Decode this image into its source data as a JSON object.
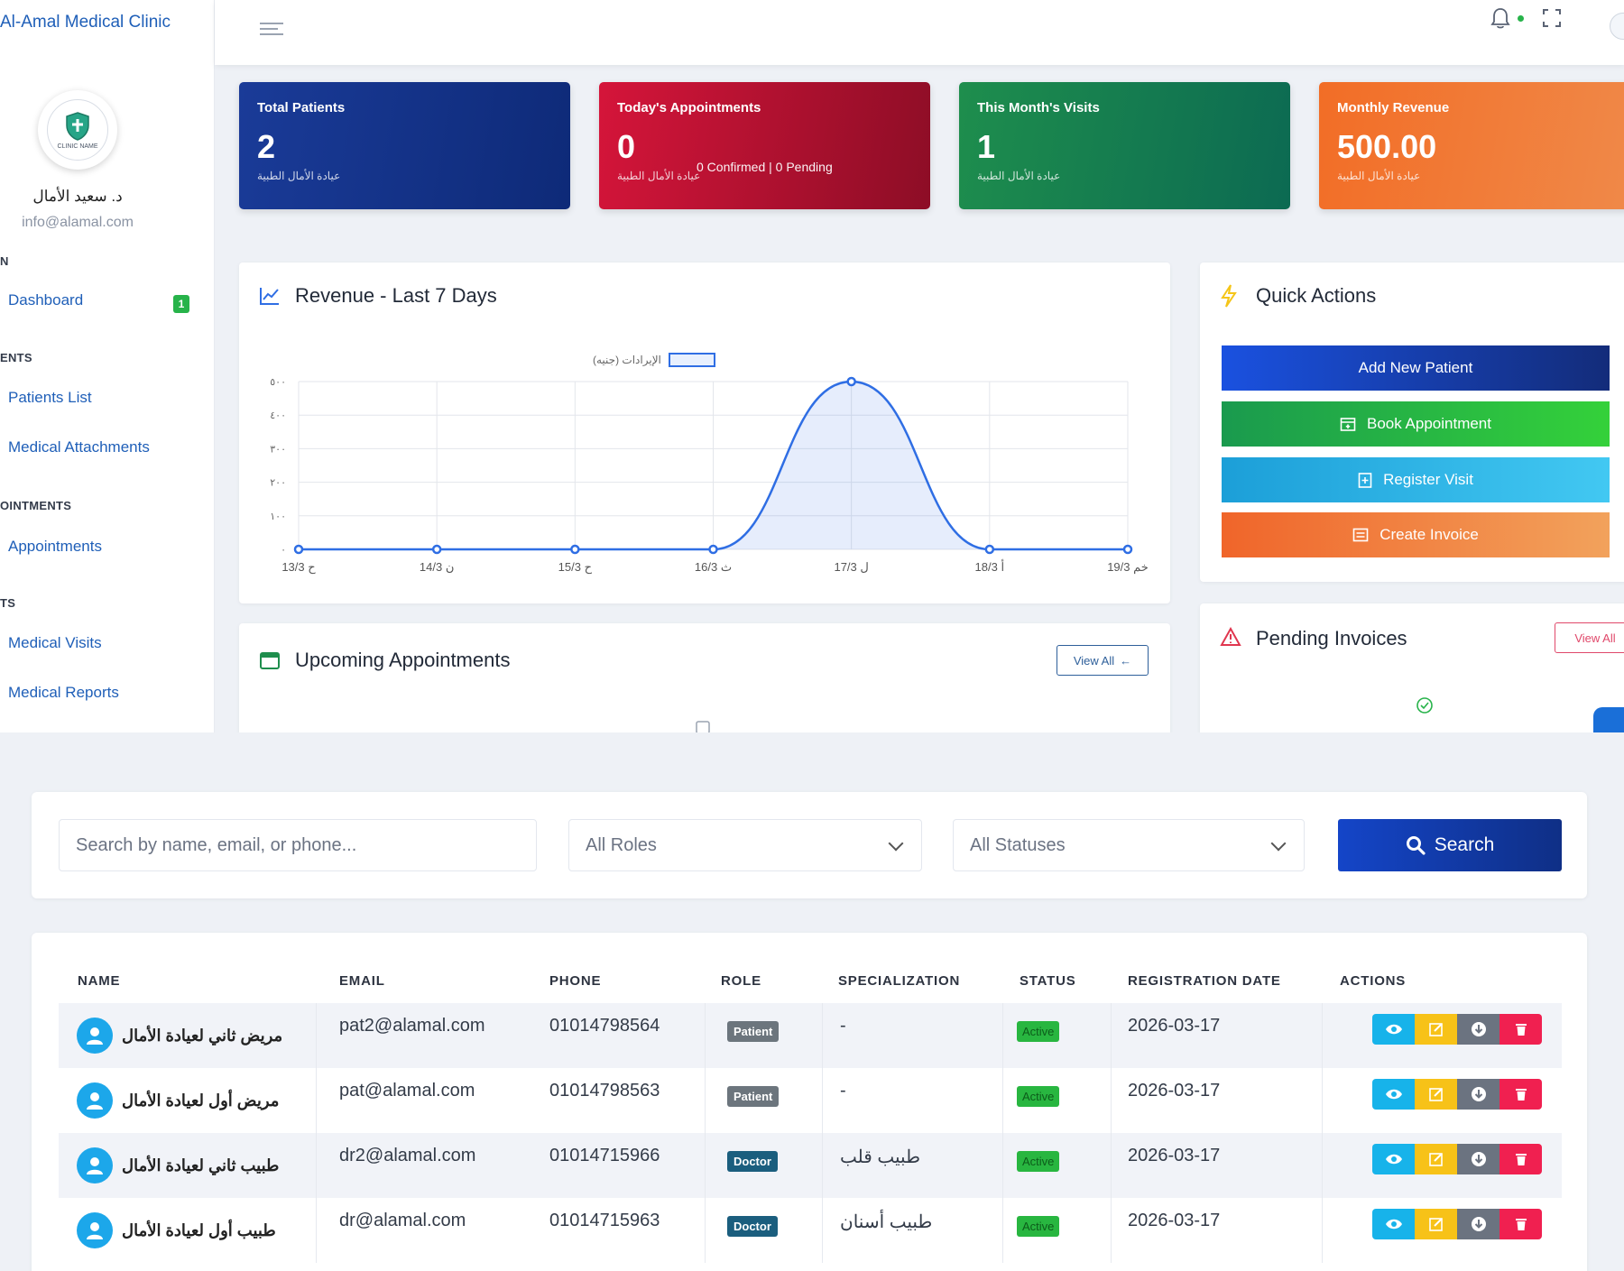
{
  "brand": "Al-Amal Medical Clinic",
  "logo_text": "CLINIC NAME",
  "user": {
    "name": "د. سعيد الأمال",
    "email": "info@alamal.com"
  },
  "sidebar": {
    "sections": [
      "N",
      "ENTS",
      "OINTMENTS",
      "TS"
    ],
    "items": [
      {
        "label": "Dashboard",
        "badge": "1"
      },
      {
        "label": "Patients List"
      },
      {
        "label": "Medical Attachments"
      },
      {
        "label": "Appointments"
      },
      {
        "label": "Medical Visits"
      },
      {
        "label": "Medical Reports"
      }
    ]
  },
  "stats": [
    {
      "title": "Total Patients",
      "value": "2",
      "sub": "عيادة الأمال الطبية",
      "color": "#1a3b98"
    },
    {
      "title": "Today's Appointments",
      "value": "0",
      "extra": "0 Confirmed | 0 Pending",
      "sub": "عيادة الأمال الطبية",
      "color": "#d5153a"
    },
    {
      "title": "This Month's Visits",
      "value": "1",
      "sub": "عيادة الأمال الطبية",
      "color": "#1e8e4d"
    },
    {
      "title": "Monthly Revenue",
      "value": "500.00",
      "sub": "عيادة الأمال الطبية",
      "color": "#f26d26"
    }
  ],
  "revenue_panel": {
    "title": "Revenue - Last 7 Days",
    "legend": "الإيرادات (جنيه)"
  },
  "chart_data": {
    "type": "area",
    "title": "Revenue - Last 7 Days",
    "series": [
      {
        "name": "الإيرادات (جنيه)",
        "values": [
          0,
          0,
          0,
          0,
          500,
          0,
          0
        ]
      }
    ],
    "categories": [
      "13/3 ح",
      "14/3 ن",
      "15/3 ح",
      "16/3 ث",
      "17/3 ل",
      "18/3 أ",
      "19/3 خم"
    ],
    "y_ticks": [
      "٠",
      "١٠٠",
      "٢٠٠",
      "٣٠٠",
      "٤٠٠",
      "٥٠٠"
    ],
    "ylim": [
      0,
      500
    ],
    "grid": true,
    "legend_position": "top",
    "color": "#2f6ee4"
  },
  "quick_actions": {
    "title": "Quick Actions",
    "buttons": [
      "Add New Patient",
      "Book Appointment",
      "Register Visit",
      "Create Invoice"
    ]
  },
  "upcoming": {
    "title": "Upcoming Appointments",
    "view_all": "View All"
  },
  "pending": {
    "title": "Pending Invoices",
    "view_all": "View All"
  },
  "filters": {
    "search_placeholder": "Search by name, email, or phone...",
    "role_select": "All Roles",
    "status_select": "All Statuses",
    "search_button": "Search"
  },
  "table": {
    "headers": [
      "NAME",
      "EMAIL",
      "PHONE",
      "ROLE",
      "SPECIALIZATION",
      "STATUS",
      "REGISTRATION DATE",
      "ACTIONS"
    ],
    "rows": [
      {
        "name": "مريض ثاني لعيادة الأمال",
        "email": "pat2@alamal.com",
        "phone": "01014798564",
        "role": "Patient",
        "specialization": "-",
        "status": "Active",
        "date": "2026-03-17"
      },
      {
        "name": "مريض أول لعيادة الأمال",
        "email": "pat@alamal.com",
        "phone": "01014798563",
        "role": "Patient",
        "specialization": "-",
        "status": "Active",
        "date": "2026-03-17"
      },
      {
        "name": "طبيب ثاني لعيادة الأمال",
        "email": "dr2@alamal.com",
        "phone": "01014715966",
        "role": "Doctor",
        "specialization": "طبيب قلب",
        "status": "Active",
        "date": "2026-03-17"
      },
      {
        "name": "طبيب أول لعيادة الأمال",
        "email": "dr@alamal.com",
        "phone": "01014715963",
        "role": "Doctor",
        "specialization": "طبيب أسنان",
        "status": "Active",
        "date": "2026-03-17"
      }
    ]
  }
}
